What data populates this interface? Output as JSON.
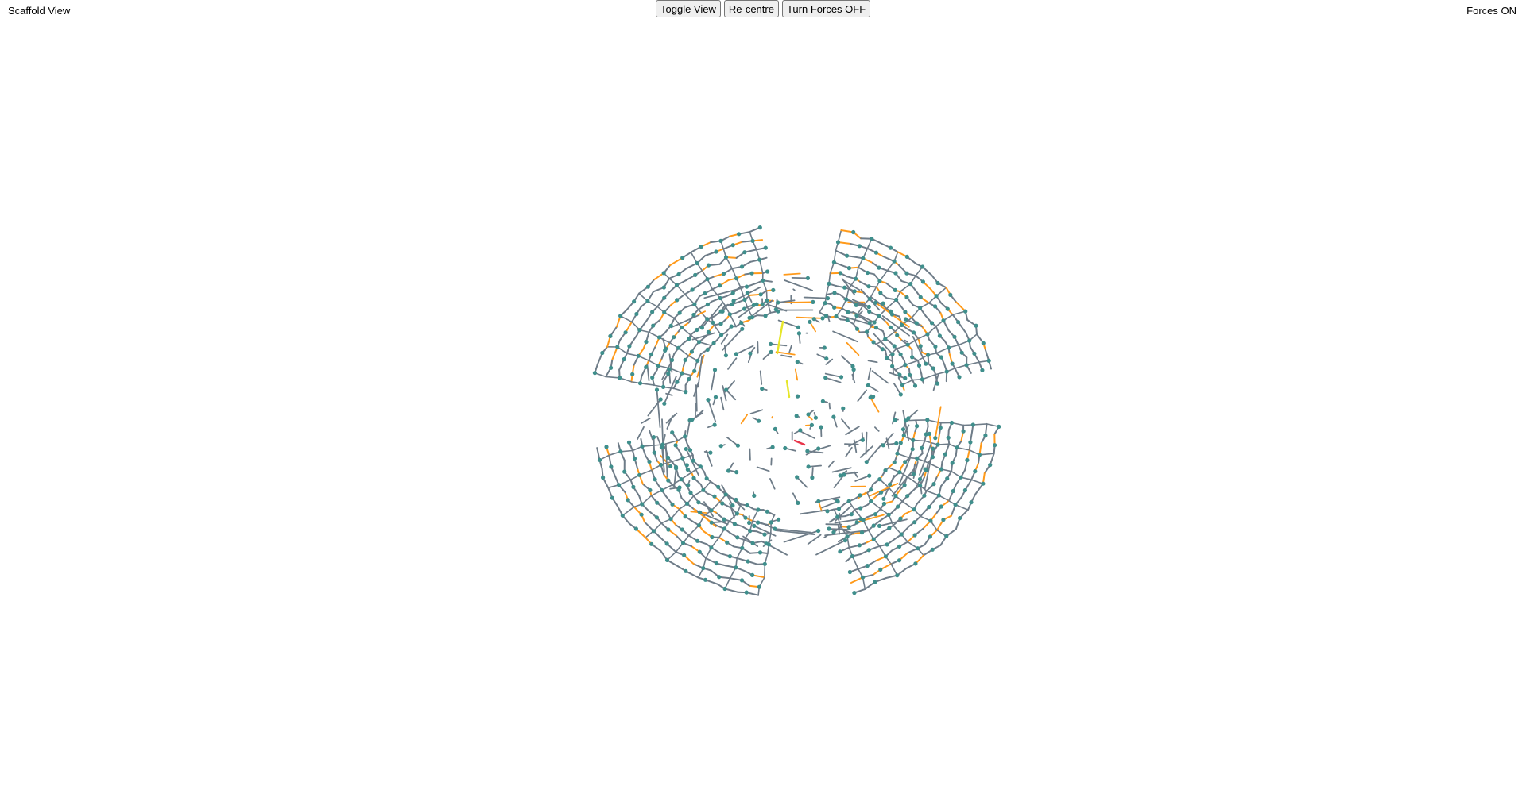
{
  "header": {
    "view_title": "Scaffold View",
    "forces_status": "Forces ON"
  },
  "toolbar": {
    "toggle_view_label": "Toggle View",
    "recentre_label": "Re-centre",
    "forces_toggle_label": "Turn Forces OFF"
  },
  "scene": {
    "type": "3d-scaffold-mesh",
    "colors": {
      "edge": "#6e7c88",
      "node": "#3f8f8c",
      "crossover": "#ff9a1a",
      "highlight_strand": "#e6e62a",
      "selected_strand": "#e8354a"
    },
    "icons": {
      "mesh": "scaffold-mesh-icon"
    }
  }
}
